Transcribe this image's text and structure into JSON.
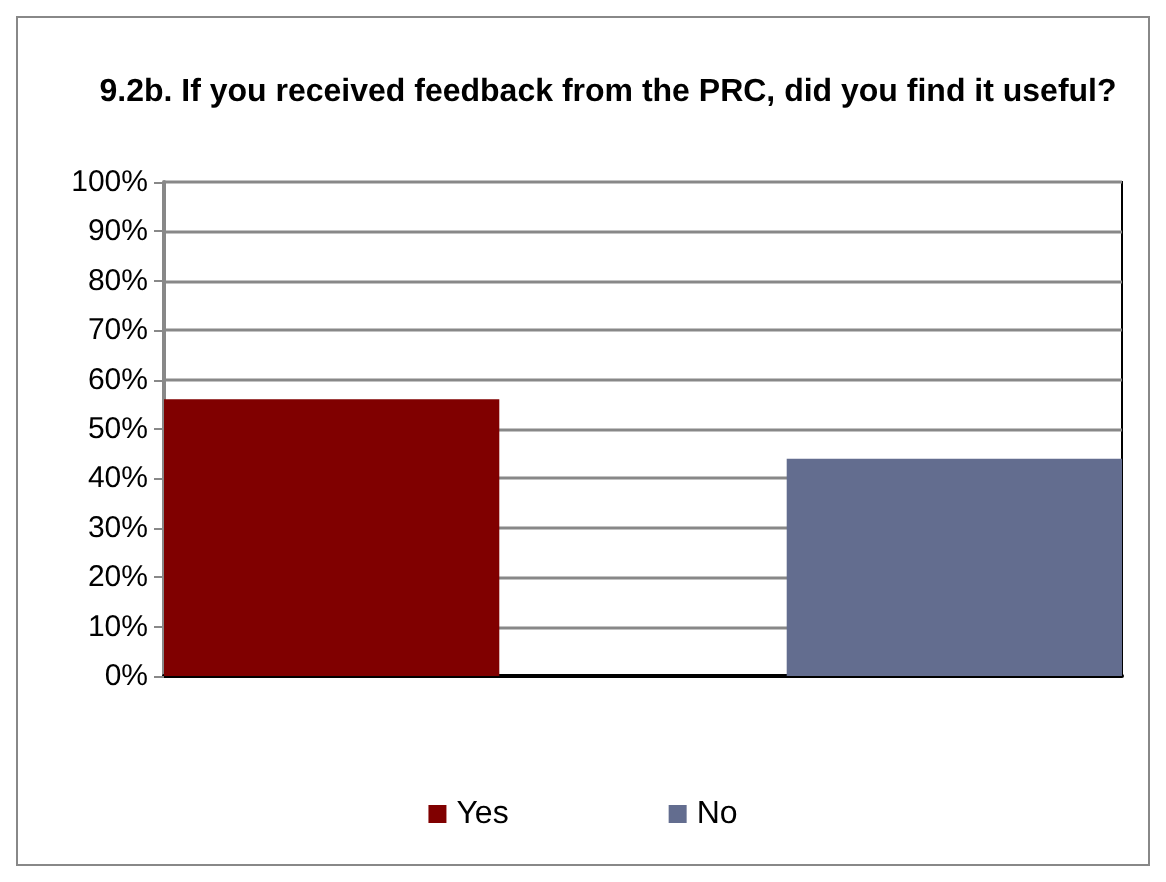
{
  "chart_data": {
    "type": "bar",
    "title": "9.2b. If you received feedback from the PRC, did you find it useful?",
    "categories": [
      null
    ],
    "series": [
      {
        "name": "Yes",
        "color": "#800000",
        "values": [
          56
        ]
      },
      {
        "name": "No",
        "color": "#636d8f",
        "values": [
          44
        ]
      }
    ],
    "ylim": [
      0,
      100
    ],
    "yticks": [
      {
        "value": 0,
        "label": "0%"
      },
      {
        "value": 10,
        "label": "10%"
      },
      {
        "value": 20,
        "label": "20%"
      },
      {
        "value": 30,
        "label": "30%"
      },
      {
        "value": 40,
        "label": "40%"
      },
      {
        "value": 50,
        "label": "50%"
      },
      {
        "value": 60,
        "label": "60%"
      },
      {
        "value": 70,
        "label": "70%"
      },
      {
        "value": 80,
        "label": "80%"
      },
      {
        "value": 90,
        "label": "90%"
      },
      {
        "value": 100,
        "label": "100%"
      }
    ],
    "grid": true,
    "legend": "bottom"
  }
}
